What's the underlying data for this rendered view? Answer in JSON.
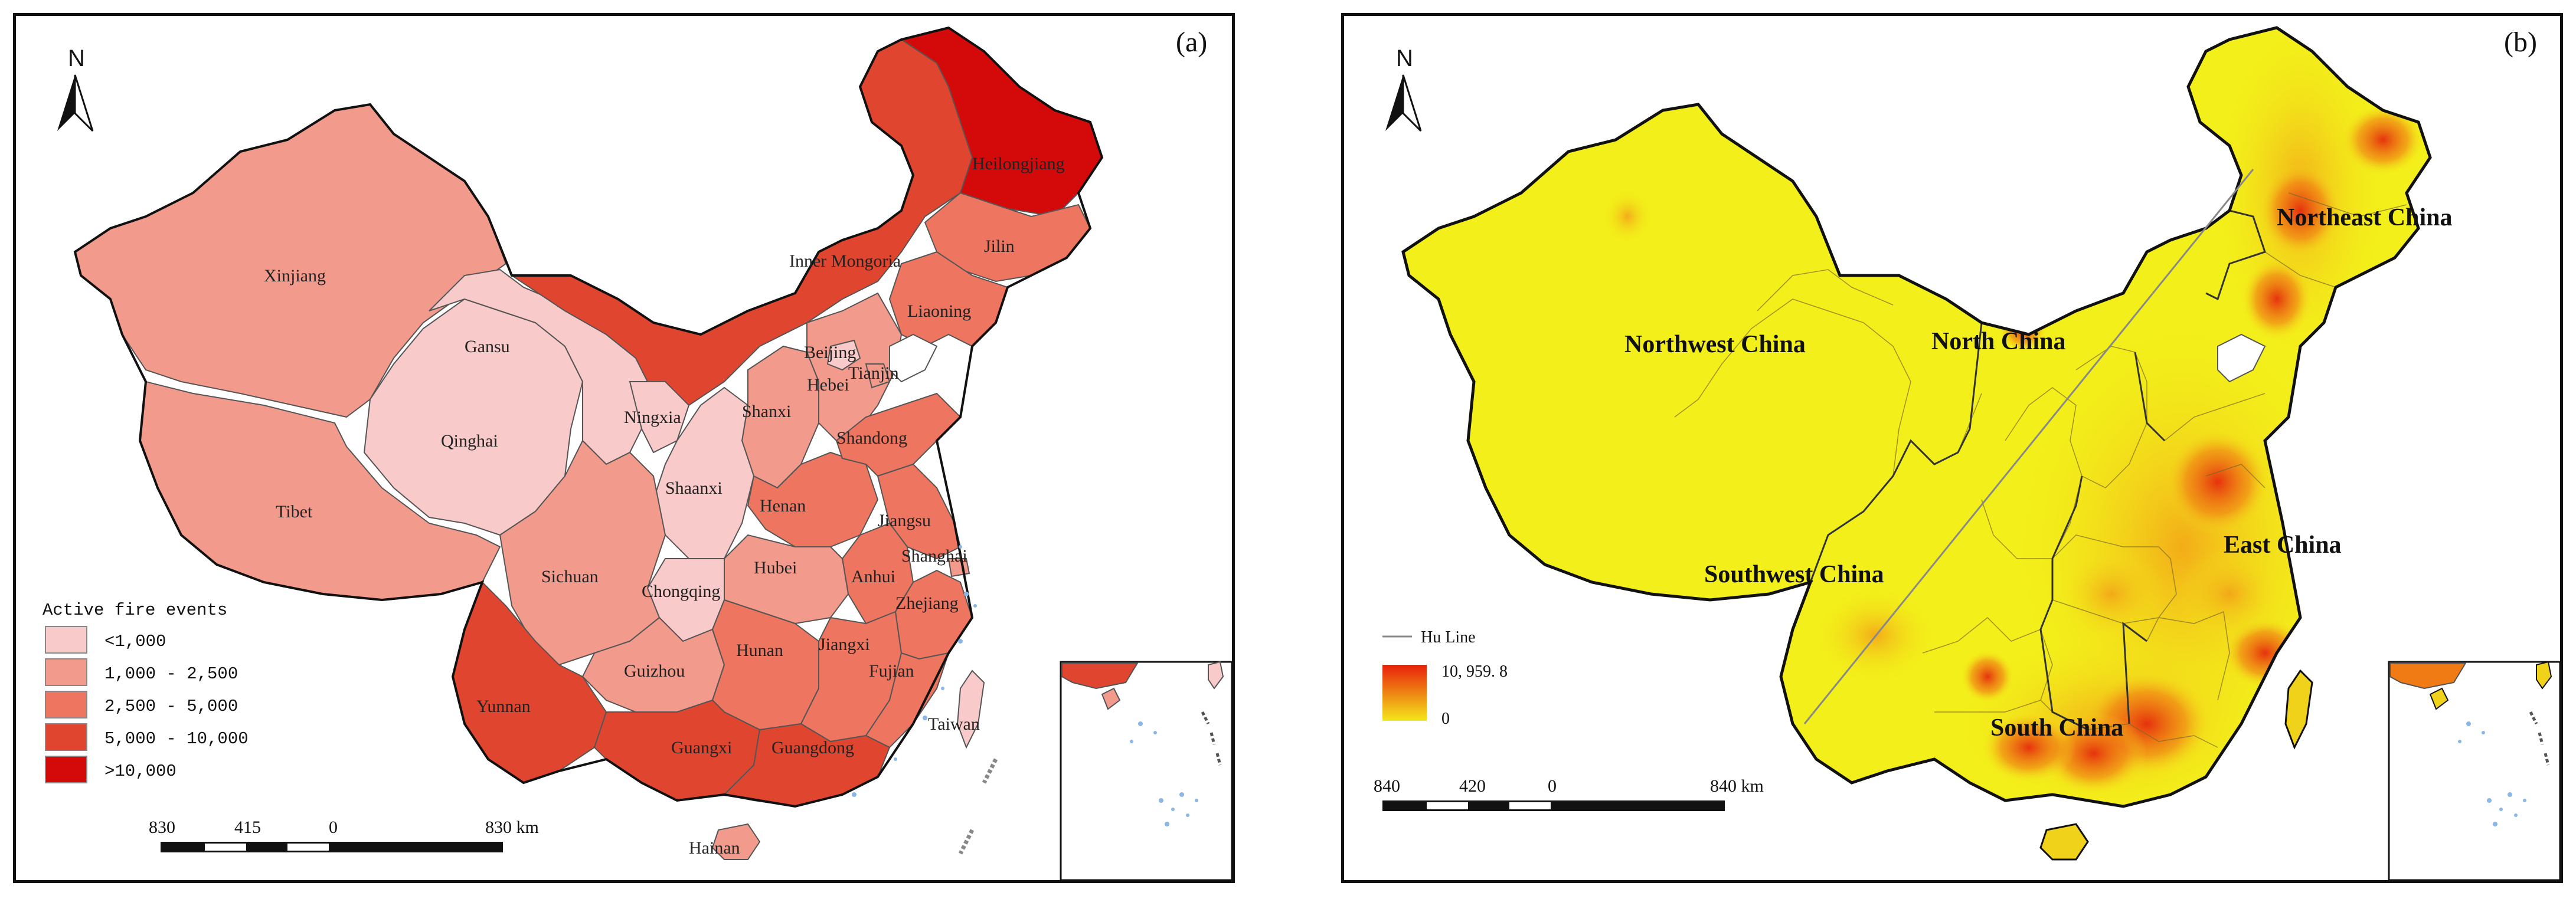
{
  "panel_a": {
    "label": "(a)",
    "north": "N",
    "provinces": {
      "xinjiang": "Xinjiang",
      "tibet": "Tibet",
      "qinghai": "Qinghai",
      "gansu": "Gansu",
      "ningxia": "Ningxia",
      "shaanxi": "Shaanxi",
      "sichuan": "Sichuan",
      "chongqing": "Chongqing",
      "yunnan": "Yunnan",
      "guizhou": "Guizhou",
      "guangxi": "Guangxi",
      "guangdong": "Guangdong",
      "hainan": "Hainan",
      "hunan": "Hunan",
      "hubei": "Hubei",
      "henan": "Henan",
      "shanxi": "Shanxi",
      "hebei": "Hebei",
      "beijing": "Beijing",
      "tianjin": "Tianjin",
      "shandong": "Shandong",
      "jiangsu": "Jiangsu",
      "shanghai": "Shanghai",
      "anhui": "Anhui",
      "zhejiang": "Zhejiang",
      "jiangxi": "Jiangxi",
      "fujian": "Fujian",
      "taiwan": "Taiwan",
      "inner_mongoria": "Inner Mongoria",
      "jilin": "Jilin",
      "liaoning": "Liaoning",
      "heilongjiang": "Heilongjiang"
    },
    "legend": {
      "title": "Active fire events",
      "items": [
        {
          "label": "<1,000",
          "color": "#f8caca"
        },
        {
          "label": "1,000 - 2,500",
          "color": "#f29a8c"
        },
        {
          "label": "2,500 - 5,000",
          "color": "#ee7560"
        },
        {
          "label": "5,000 - 10,000",
          "color": "#e0452f"
        },
        {
          "label": ">10,000",
          "color": "#d40a0a"
        }
      ]
    },
    "scale": {
      "left": "830",
      "mid1": "415",
      "zero": "0",
      "right": "830 km"
    }
  },
  "panel_b": {
    "label": "(b)",
    "north": "N",
    "regions": {
      "northwest": "Northwest China",
      "north": "North China",
      "northeast": "Northeast China",
      "southwest": "Southwest China",
      "east": "East China",
      "south": "South China"
    },
    "legend": {
      "line_label": "Hu Line",
      "max": "10, 959. 8",
      "min": "0",
      "gradient_top": "#e8200a",
      "gradient_bottom": "#f4e81c"
    },
    "scale": {
      "left": "840",
      "mid1": "420",
      "zero": "0",
      "right": "840 km"
    }
  }
}
